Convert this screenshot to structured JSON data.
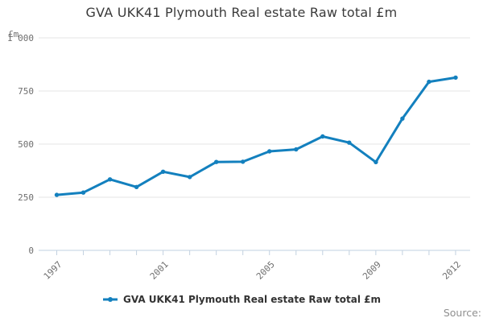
{
  "title": "GVA UKK41 Plymouth Real estate Raw total £m",
  "source_label": "Source:",
  "legend": {
    "label": "GVA UKK41 Plymouth Real estate Raw total £m"
  },
  "colors": {
    "line": "#1380be",
    "grid": "#e6e6e6",
    "axis": "#c2d1e0",
    "tick_label": "#6e6e6e",
    "title": "#3a3a3a",
    "legend_text": "#333333",
    "source_text": "#8f8f8f"
  },
  "chart_data": {
    "type": "line",
    "title": "GVA UKK41 Plymouth Real estate Raw total £m",
    "xlabel": "",
    "ylabel": "£m",
    "ylim": [
      0,
      1000
    ],
    "y_ticks": [
      0,
      250,
      500,
      750,
      1000
    ],
    "y_tick_labels": [
      "0",
      "250",
      "500",
      "750",
      "1 000"
    ],
    "x": [
      1997,
      1998,
      1999,
      2000,
      2001,
      2002,
      2003,
      2004,
      2005,
      2006,
      2007,
      2008,
      2009,
      2010,
      2011,
      2012
    ],
    "x_tick_labels": [
      "1997",
      "2001",
      "2005",
      "2009",
      "2012"
    ],
    "series": [
      {
        "name": "GVA UKK41 Plymouth Real estate Raw total £m",
        "values": [
          261,
          272,
          334,
          298,
          370,
          345,
          416,
          417,
          466,
          475,
          536,
          507,
          415,
          620,
          793,
          813
        ]
      }
    ],
    "grid": "horizontal",
    "legend_position": "bottom",
    "marker": "point"
  }
}
